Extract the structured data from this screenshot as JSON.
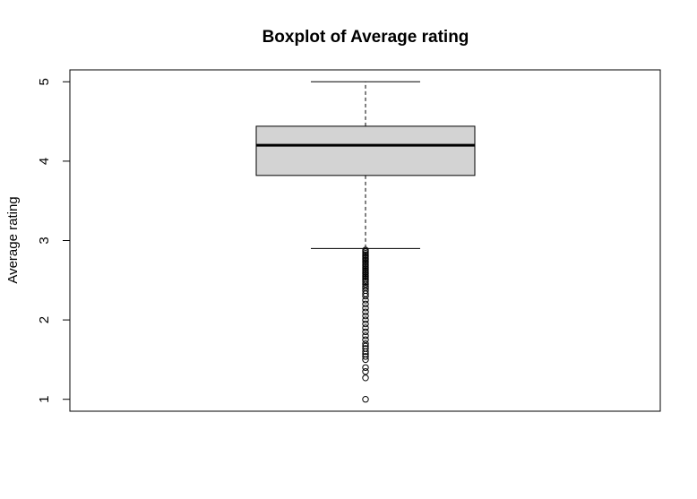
{
  "chart_data": {
    "type": "boxplot",
    "title": "Boxplot of Average rating",
    "xlabel": "",
    "ylabel": "Average rating",
    "ylim": [
      0.85,
      5.15
    ],
    "yticks": [
      1,
      2,
      3,
      4,
      5
    ],
    "ytick_labels": [
      "1",
      "2",
      "3",
      "4",
      "5"
    ],
    "grid": false,
    "legend": "none",
    "box": {
      "whisker_low": 2.9,
      "q1": 3.82,
      "median": 4.2,
      "q3": 4.44,
      "whisker_high": 5.0,
      "fill_color": "#d3d3d3",
      "outliers": [
        2.88,
        2.86,
        2.84,
        2.82,
        2.8,
        2.78,
        2.76,
        2.74,
        2.72,
        2.7,
        2.68,
        2.66,
        2.64,
        2.62,
        2.6,
        2.58,
        2.56,
        2.54,
        2.52,
        2.5,
        2.48,
        2.45,
        2.42,
        2.4,
        2.37,
        2.33,
        2.3,
        2.25,
        2.2,
        2.15,
        2.1,
        2.05,
        2.0,
        1.95,
        1.9,
        1.85,
        1.8,
        1.75,
        1.7,
        1.67,
        1.64,
        1.6,
        1.57,
        1.54,
        1.5,
        1.4,
        1.35,
        1.27,
        1.0
      ]
    }
  }
}
